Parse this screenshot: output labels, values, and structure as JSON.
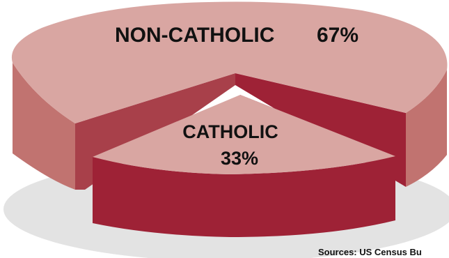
{
  "chart_data": {
    "type": "pie",
    "style": "3d-exploded",
    "slices": [
      {
        "label": "NON-CATHOLIC",
        "value": 67,
        "value_label": "67%",
        "top_color": "#d9a6a2",
        "side_color": "#c17370",
        "inner_color": "#a8404a"
      },
      {
        "label": "CATHOLIC",
        "value": 33,
        "value_label": "33%",
        "top_color": "#d9a6a2",
        "side_color": "#9e2236",
        "inner_color": "#9e2236"
      }
    ],
    "shadow_color": "#e3e3e3",
    "legend": "none"
  },
  "source": "Sources: US Census Bu"
}
